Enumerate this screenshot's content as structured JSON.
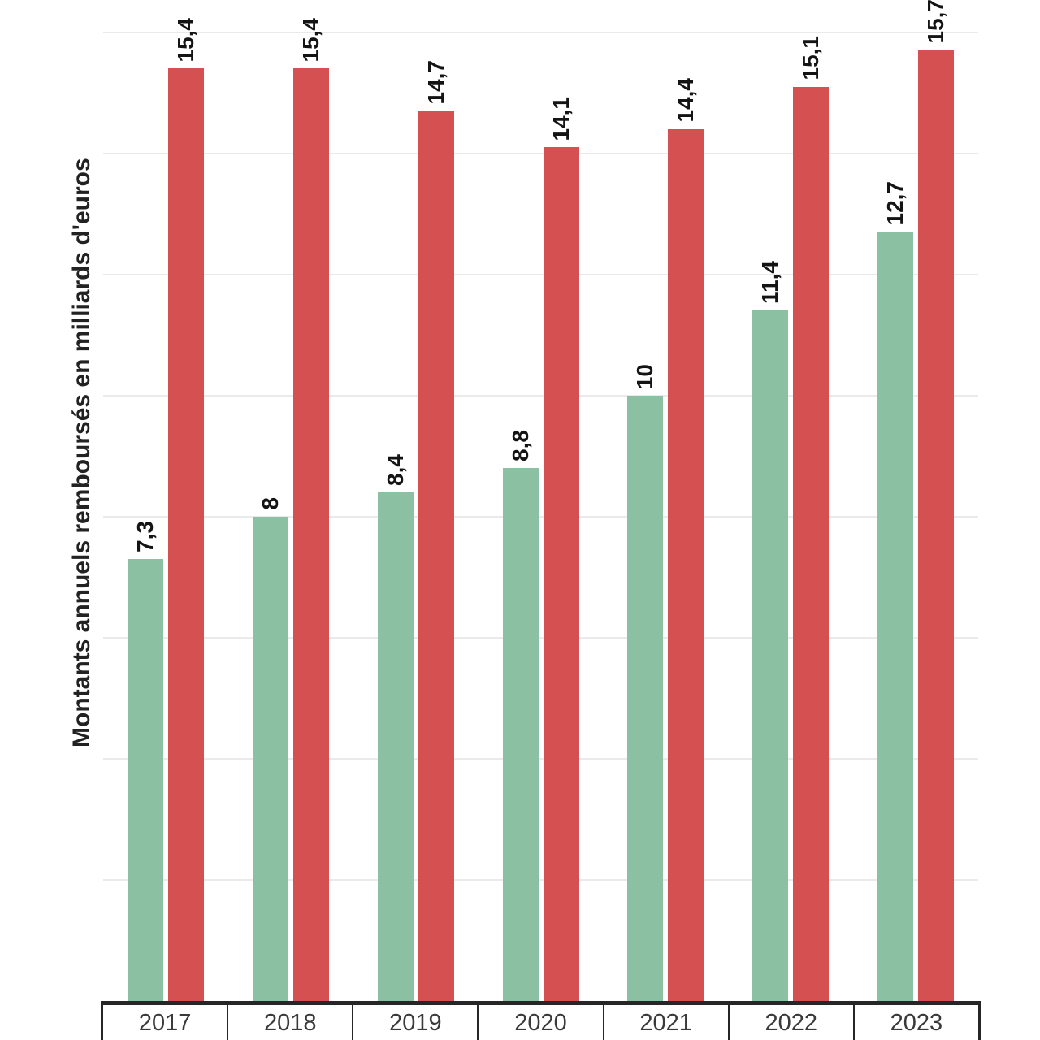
{
  "chart_data": {
    "type": "bar",
    "title": "",
    "xlabel": "",
    "ylabel": "Montants annuels remboursés en milliards d'euros",
    "categories": [
      "2017",
      "2018",
      "2019",
      "2020",
      "2021",
      "2022",
      "2023"
    ],
    "series": [
      {
        "name": "green-series",
        "color": "#8CC0A3",
        "values": [
          7.3,
          8,
          8.4,
          8.8,
          10,
          11.4,
          12.7
        ],
        "labels": [
          "7,3",
          "8",
          "8,4",
          "8,8",
          "10",
          "11,4",
          "12,7"
        ]
      },
      {
        "name": "red-series",
        "color": "#D55050",
        "values": [
          15.4,
          15.4,
          14.7,
          14.1,
          14.4,
          15.1,
          15.7
        ],
        "labels": [
          "15,4",
          "15,4",
          "14,7",
          "14,1",
          "14,4",
          "15,1",
          "15,7"
        ]
      }
    ],
    "ylim": [
      0,
      16.53
    ],
    "grid": {
      "step": 2,
      "color": "#eaeaea",
      "visible": true
    },
    "legend": "none",
    "value_labels_rotated": true
  },
  "colors": {
    "background": "#ffffff",
    "axis_border": "#262626",
    "gridline": "#eaeaea",
    "value_label_text": "#141414",
    "year_text": "#3a3a3a"
  }
}
